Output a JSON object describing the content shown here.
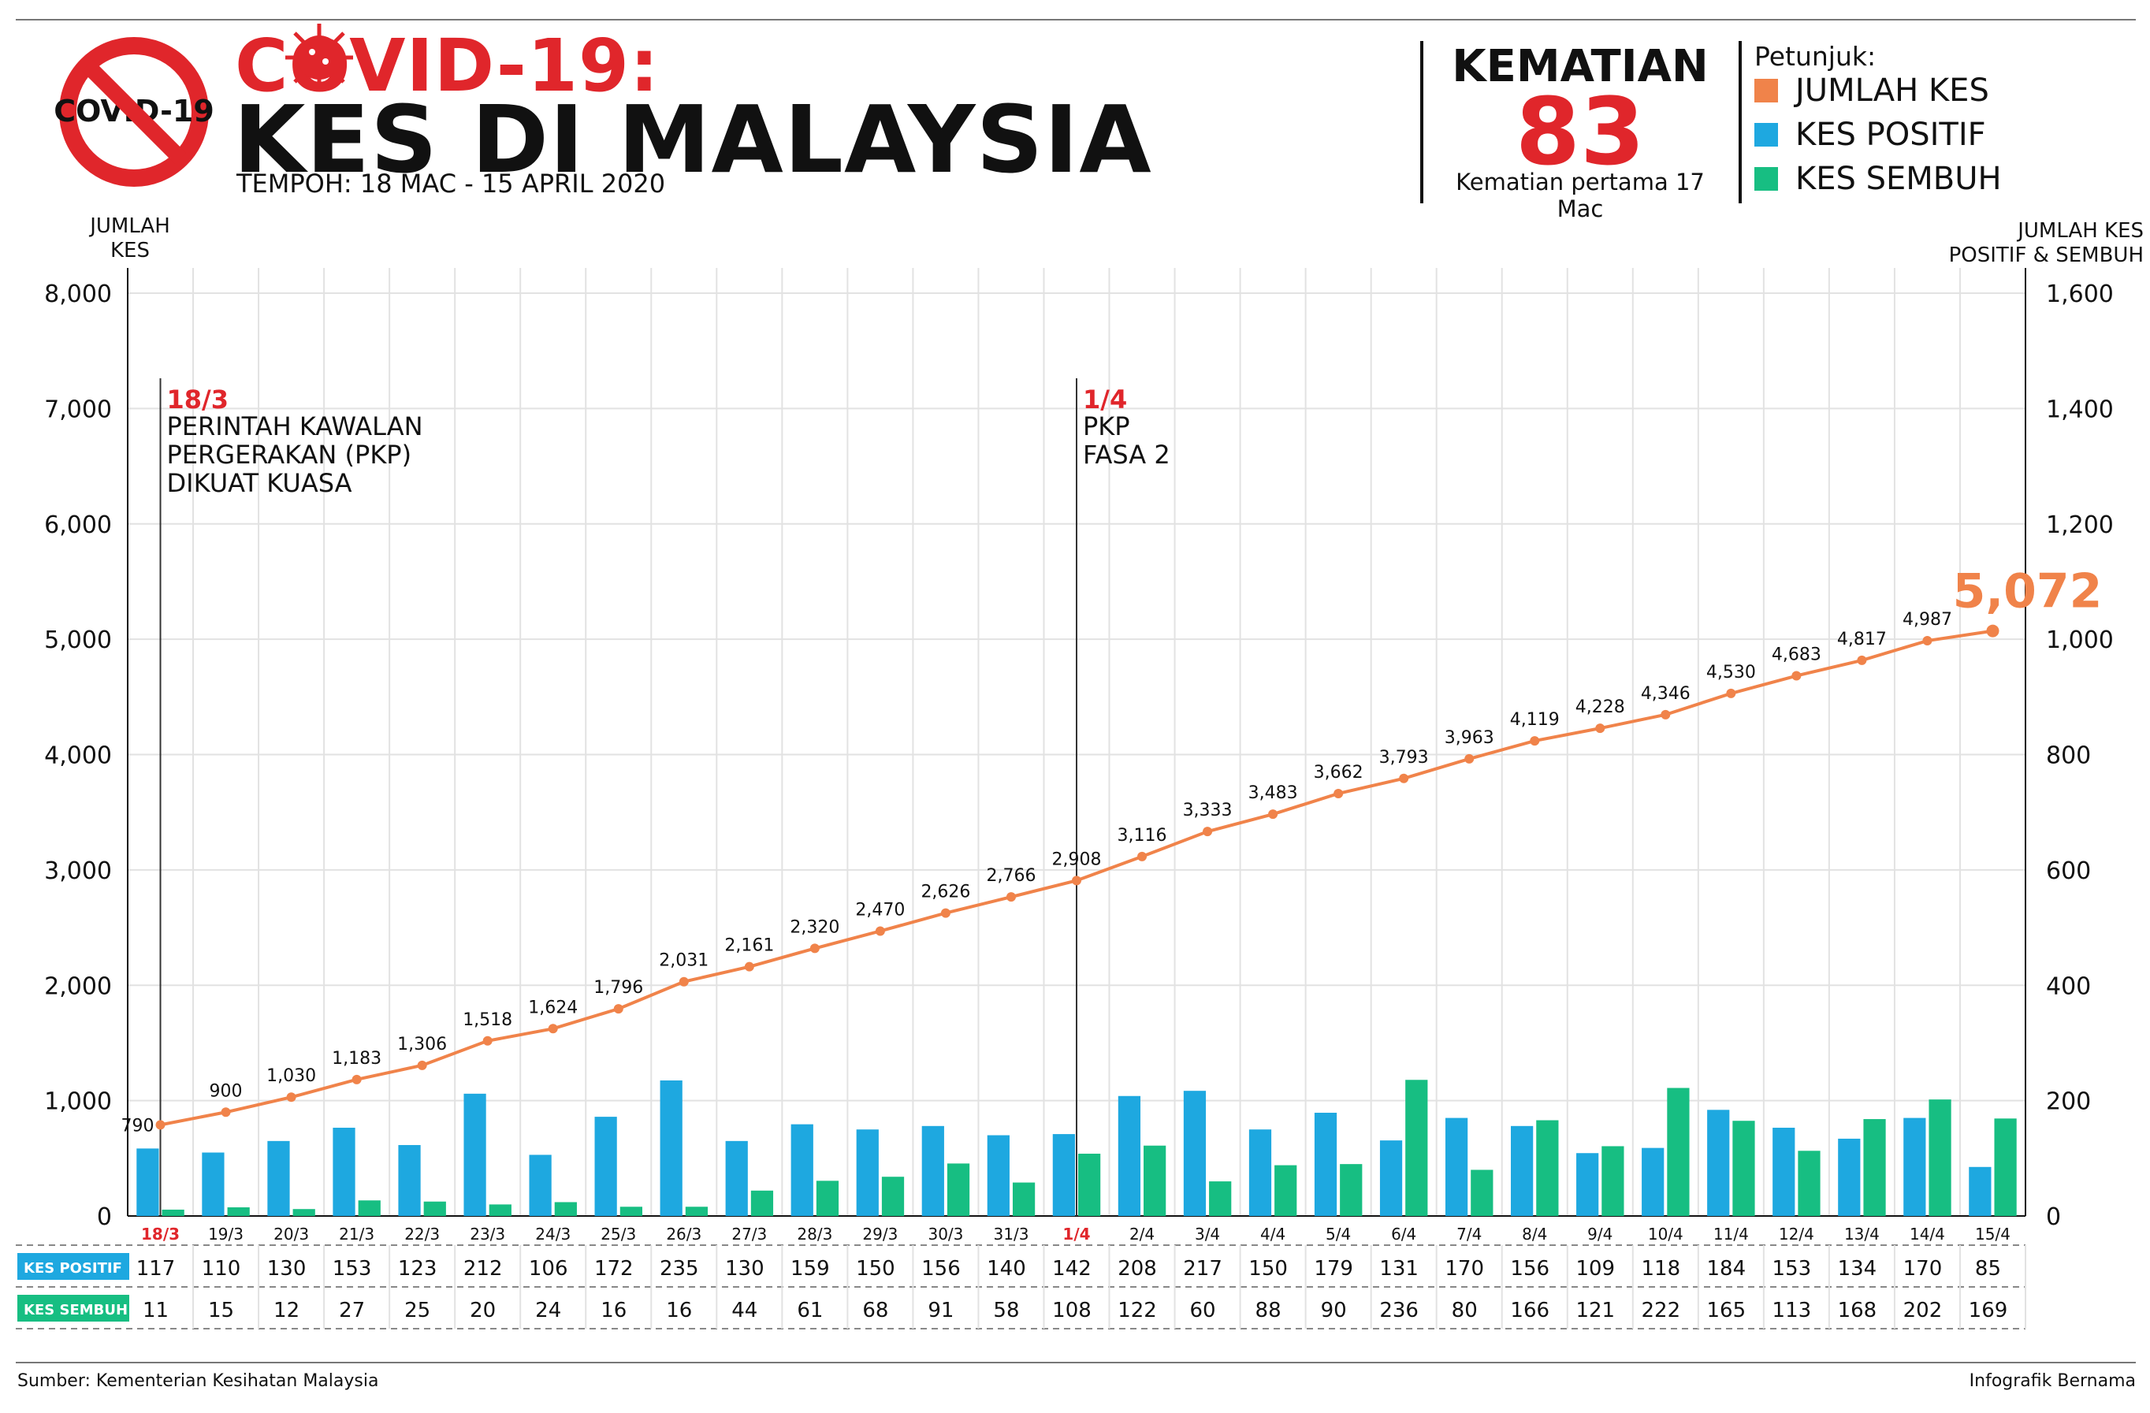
{
  "header": {
    "title_line1": "COVID-19:",
    "title_line2": "KES DI MALAYSIA",
    "period": "TEMPOH: 18 MAC - 15 APRIL 2020",
    "logo_text": "COVID-19"
  },
  "deaths": {
    "label": "KEMATIAN",
    "value": "83",
    "note": "Kematian pertama 17 Mac"
  },
  "legend": {
    "title": "Petunjuk:",
    "items": [
      {
        "label": "JUMLAH KES",
        "color": "#f0834a"
      },
      {
        "label": "KES POSITIF",
        "color": "#1ea8e0"
      },
      {
        "label": "KES SEMBUH",
        "color": "#17be82"
      }
    ]
  },
  "footer": {
    "source": "Sumber: Kementerian Kesihatan Malaysia",
    "credit": "Infografik Bernama"
  },
  "chart_data": {
    "type": "bar+line",
    "left_axis_title": [
      "JUMLAH",
      "KES"
    ],
    "right_axis_title": [
      "JUMLAH KES",
      "POSITIF & SEMBUH"
    ],
    "left_ylim": [
      0,
      8000
    ],
    "right_ylim": [
      0,
      1600
    ],
    "left_ticks": [
      "0",
      "1,000",
      "2,000",
      "3,000",
      "4,000",
      "5,000",
      "6,000",
      "7,000",
      "8,000"
    ],
    "right_ticks": [
      "0",
      "200",
      "400",
      "600",
      "800",
      "1,000",
      "1,200",
      "1,400",
      "1,600"
    ],
    "categories": [
      "18/3",
      "19/3",
      "20/3",
      "21/3",
      "22/3",
      "23/3",
      "24/3",
      "25/3",
      "26/3",
      "27/3",
      "28/3",
      "29/3",
      "30/3",
      "31/3",
      "1/4",
      "2/4",
      "3/4",
      "4/4",
      "5/4",
      "6/4",
      "7/4",
      "8/4",
      "9/4",
      "10/4",
      "11/4",
      "12/4",
      "13/4",
      "14/4",
      "15/4"
    ],
    "highlight_categories": [
      "18/3",
      "1/4"
    ],
    "series": [
      {
        "name": "JUMLAH KES",
        "axis": "left",
        "color": "#f0834a",
        "values": [
          790,
          900,
          1030,
          1183,
          1306,
          1518,
          1624,
          1796,
          2031,
          2161,
          2320,
          2470,
          2626,
          2766,
          2908,
          3116,
          3333,
          3483,
          3662,
          3793,
          3963,
          4119,
          4228,
          4346,
          4530,
          4683,
          4817,
          4987,
          5072
        ],
        "labels": [
          "790",
          "900",
          "1,030",
          "1,183",
          "1,306",
          "1,518",
          "1,624",
          "1,796",
          "2,031",
          "2,161",
          "2,320",
          "2,470",
          "2,626",
          "2,766",
          "2,908",
          "3,116",
          "3,333",
          "3,483",
          "3,662",
          "3,793",
          "3,963",
          "4,119",
          "4,228",
          "4,346",
          "4,530",
          "4,683",
          "4,817",
          "4,987",
          "5,072"
        ]
      },
      {
        "name": "KES POSITIF",
        "axis": "right",
        "color": "#1ea8e0",
        "values": [
          117,
          110,
          130,
          153,
          123,
          212,
          106,
          172,
          235,
          130,
          159,
          150,
          156,
          140,
          142,
          208,
          217,
          150,
          179,
          131,
          170,
          156,
          109,
          118,
          184,
          153,
          134,
          170,
          85
        ]
      },
      {
        "name": "KES SEMBUH",
        "axis": "right",
        "color": "#17be82",
        "values": [
          11,
          15,
          12,
          27,
          25,
          20,
          24,
          16,
          16,
          44,
          61,
          68,
          91,
          58,
          108,
          122,
          60,
          88,
          90,
          236,
          80,
          166,
          121,
          222,
          165,
          113,
          168,
          202,
          169
        ]
      }
    ],
    "table_rows": [
      {
        "label": "KES POSITIF",
        "color": "#1ea8e0"
      },
      {
        "label": "KES SEMBUH",
        "color": "#17be82"
      }
    ],
    "annotations": [
      {
        "category": "18/3",
        "heading": "18/3",
        "lines": [
          "PERINTAH KAWALAN",
          "PERGERAKAN (PKP)",
          "DIKUAT KUASA"
        ]
      },
      {
        "category": "1/4",
        "heading": "1/4",
        "lines": [
          "PKP",
          "FASA 2"
        ]
      }
    ],
    "final_callout": "5,072"
  }
}
